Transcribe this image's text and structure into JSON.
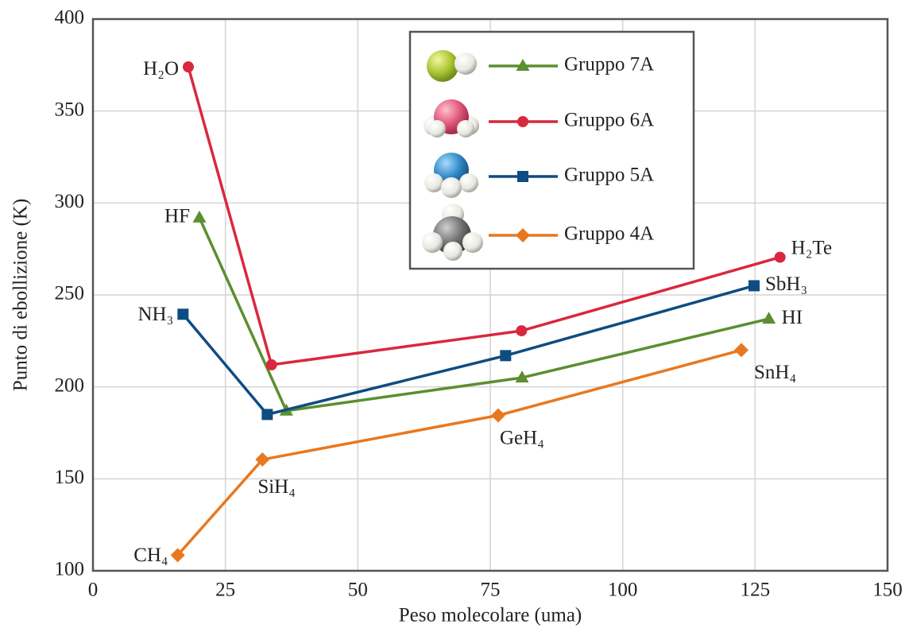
{
  "chart_data": {
    "type": "line",
    "x_label": "Peso molecolare (uma)",
    "y_label": "Punto di ebollizione (K)",
    "xlim": [
      0,
      150
    ],
    "xticks": [
      0,
      25,
      50,
      75,
      100,
      125,
      150
    ],
    "ylim": [
      100,
      400
    ],
    "yticks": [
      100,
      150,
      200,
      250,
      300,
      350,
      400
    ],
    "grid": true,
    "series": [
      {
        "name": "Gruppo 7A",
        "color": "#5b8f2f",
        "marker": "triangle",
        "x": [
          20.1,
          36.5,
          81,
          127.6
        ],
        "values": [
          292,
          187,
          205,
          237
        ],
        "point_labels": [
          "HF",
          null,
          null,
          "HI"
        ]
      },
      {
        "name": "Gruppo 6A",
        "color": "#d9283e",
        "marker": "circle",
        "x": [
          18,
          33.7,
          80.9,
          129.7
        ],
        "values": [
          374,
          212,
          230.5,
          270.5
        ],
        "point_labels": [
          "H₂O",
          null,
          null,
          "H₂Te"
        ]
      },
      {
        "name": "Gruppo 5A",
        "color": "#0f4c81",
        "marker": "square",
        "x": [
          17,
          32.9,
          77.9,
          124.8
        ],
        "values": [
          239.5,
          185,
          217,
          255
        ],
        "point_labels": [
          "NH₃",
          null,
          null,
          "SbH₃"
        ]
      },
      {
        "name": "Gruppo 4A",
        "color": "#e8781f",
        "marker": "diamond",
        "x": [
          16,
          32,
          76.5,
          122.4
        ],
        "values": [
          108.5,
          160.5,
          184.5,
          220
        ],
        "point_labels": [
          "CH₄",
          "SiH₄",
          "GeH₄",
          "SnH₄"
        ]
      }
    ]
  }
}
